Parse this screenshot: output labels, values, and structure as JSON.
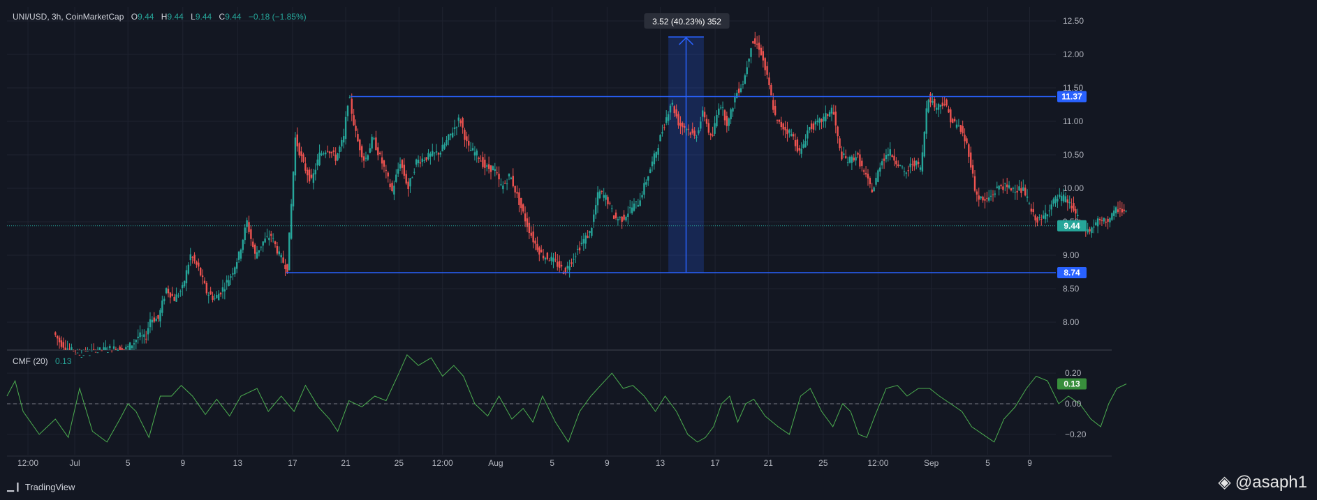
{
  "legend": {
    "symbol": "UNI/USD, 3h, CoinMarketCap",
    "open_key": "O",
    "open": "9.44",
    "high_key": "H",
    "high": "9.44",
    "low_key": "L",
    "low": "9.44",
    "close_key": "C",
    "close": "9.44",
    "change": "−0.18 (−1.85%)"
  },
  "indicator": {
    "name": "CMF (20)",
    "value": "0.13"
  },
  "footer": {
    "brand": "TradingView"
  },
  "watermark": "@asaph1",
  "measure_label": "3.52 (40.23%) 352",
  "colors": {
    "background": "#131722",
    "up": "#26a69a",
    "down": "#ef5350",
    "line": "#2962ff",
    "cmf": "#4caf50",
    "grid": "#1f2330",
    "text": "#b2b5be"
  },
  "chart_data": [
    {
      "type": "candlestick",
      "title": "UNI/USD, 3h, CoinMarketCap",
      "ylim": [
        7.6,
        12.6
      ],
      "y_ticks": [
        "12.50",
        "12.00",
        "11.50",
        "11.00",
        "10.50",
        "10.00",
        "9.50",
        "9.00",
        "8.50",
        "8.00"
      ],
      "x_ticks": [
        "12:00",
        "Jul",
        "5",
        "9",
        "13",
        "17",
        "21",
        "25",
        "12:00",
        "Aug",
        "5",
        "9",
        "13",
        "17",
        "21",
        "25",
        "12:00",
        "Sep",
        "5",
        "9"
      ],
      "price_path": [
        {
          "x": 3.0,
          "y": 7.85
        },
        {
          "x": 3.4,
          "y": 7.7
        },
        {
          "x": 4.5,
          "y": 7.5
        },
        {
          "x": 5.5,
          "y": 7.55
        },
        {
          "x": 6.5,
          "y": 7.6
        },
        {
          "x": 7.5,
          "y": 7.6
        },
        {
          "x": 8.0,
          "y": 7.7
        },
        {
          "x": 8.3,
          "y": 7.8
        },
        {
          "x": 8.7,
          "y": 7.75
        },
        {
          "x": 9.0,
          "y": 8.05
        },
        {
          "x": 9.5,
          "y": 8.05
        },
        {
          "x": 10.0,
          "y": 8.5
        },
        {
          "x": 10.5,
          "y": 8.35
        },
        {
          "x": 11.0,
          "y": 8.5
        },
        {
          "x": 11.5,
          "y": 9.0
        },
        {
          "x": 12.0,
          "y": 8.8
        },
        {
          "x": 12.5,
          "y": 8.45
        },
        {
          "x": 13.0,
          "y": 8.35
        },
        {
          "x": 13.5,
          "y": 8.5
        },
        {
          "x": 14.0,
          "y": 8.7
        },
        {
          "x": 14.5,
          "y": 9.0
        },
        {
          "x": 15.0,
          "y": 9.5
        },
        {
          "x": 15.5,
          "y": 9.0
        },
        {
          "x": 16.0,
          "y": 9.2
        },
        {
          "x": 16.5,
          "y": 9.3
        },
        {
          "x": 17.0,
          "y": 9.0
        },
        {
          "x": 17.5,
          "y": 8.8
        },
        {
          "x": 17.8,
          "y": 9.95
        },
        {
          "x": 18.0,
          "y": 10.75
        },
        {
          "x": 18.5,
          "y": 10.35
        },
        {
          "x": 19.0,
          "y": 10.1
        },
        {
          "x": 19.5,
          "y": 10.5
        },
        {
          "x": 20.0,
          "y": 10.6
        },
        {
          "x": 20.5,
          "y": 10.45
        },
        {
          "x": 21.0,
          "y": 10.75
        },
        {
          "x": 21.3,
          "y": 11.4
        },
        {
          "x": 21.8,
          "y": 10.75
        },
        {
          "x": 22.3,
          "y": 10.4
        },
        {
          "x": 22.8,
          "y": 10.75
        },
        {
          "x": 23.5,
          "y": 10.3
        },
        {
          "x": 24.0,
          "y": 9.95
        },
        {
          "x": 24.5,
          "y": 10.4
        },
        {
          "x": 25.0,
          "y": 10.0
        },
        {
          "x": 25.5,
          "y": 10.4
        },
        {
          "x": 26.0,
          "y": 10.45
        },
        {
          "x": 26.5,
          "y": 10.5
        },
        {
          "x": 27.0,
          "y": 10.55
        },
        {
          "x": 27.5,
          "y": 10.75
        },
        {
          "x": 28.2,
          "y": 11.05
        },
        {
          "x": 28.7,
          "y": 10.6
        },
        {
          "x": 29.3,
          "y": 10.5
        },
        {
          "x": 29.8,
          "y": 10.3
        },
        {
          "x": 30.3,
          "y": 10.3
        },
        {
          "x": 30.8,
          "y": 10.0
        },
        {
          "x": 31.3,
          "y": 10.2
        },
        {
          "x": 31.8,
          "y": 9.85
        },
        {
          "x": 32.3,
          "y": 9.5
        },
        {
          "x": 32.8,
          "y": 9.2
        },
        {
          "x": 33.3,
          "y": 9.0
        },
        {
          "x": 33.8,
          "y": 8.95
        },
        {
          "x": 34.3,
          "y": 8.85
        },
        {
          "x": 34.7,
          "y": 8.75
        },
        {
          "x": 35.3,
          "y": 9.0
        },
        {
          "x": 35.8,
          "y": 9.2
        },
        {
          "x": 36.3,
          "y": 9.35
        },
        {
          "x": 36.8,
          "y": 9.95
        },
        {
          "x": 37.3,
          "y": 9.85
        },
        {
          "x": 37.8,
          "y": 9.55
        },
        {
          "x": 38.3,
          "y": 9.55
        },
        {
          "x": 38.8,
          "y": 9.7
        },
        {
          "x": 39.3,
          "y": 9.8
        },
        {
          "x": 39.8,
          "y": 10.15
        },
        {
          "x": 40.3,
          "y": 10.5
        },
        {
          "x": 40.8,
          "y": 10.9
        },
        {
          "x": 41.3,
          "y": 11.3
        },
        {
          "x": 41.8,
          "y": 10.95
        },
        {
          "x": 42.3,
          "y": 10.9
        },
        {
          "x": 42.8,
          "y": 10.75
        },
        {
          "x": 43.3,
          "y": 11.15
        },
        {
          "x": 43.8,
          "y": 10.7
        },
        {
          "x": 44.3,
          "y": 11.3
        },
        {
          "x": 44.8,
          "y": 10.95
        },
        {
          "x": 45.3,
          "y": 11.4
        },
        {
          "x": 45.8,
          "y": 11.6
        },
        {
          "x": 46.3,
          "y": 12.2
        },
        {
          "x": 46.8,
          "y": 12.1
        },
        {
          "x": 47.3,
          "y": 11.6
        },
        {
          "x": 47.8,
          "y": 11.0
        },
        {
          "x": 48.3,
          "y": 10.9
        },
        {
          "x": 48.8,
          "y": 10.8
        },
        {
          "x": 49.3,
          "y": 10.5
        },
        {
          "x": 49.8,
          "y": 10.9
        },
        {
          "x": 50.3,
          "y": 10.95
        },
        {
          "x": 50.8,
          "y": 11.05
        },
        {
          "x": 51.3,
          "y": 11.2
        },
        {
          "x": 51.8,
          "y": 10.5
        },
        {
          "x": 52.3,
          "y": 10.4
        },
        {
          "x": 52.8,
          "y": 10.5
        },
        {
          "x": 53.3,
          "y": 10.2
        },
        {
          "x": 53.8,
          "y": 9.95
        },
        {
          "x": 54.3,
          "y": 10.4
        },
        {
          "x": 54.8,
          "y": 10.55
        },
        {
          "x": 55.3,
          "y": 10.4
        },
        {
          "x": 55.8,
          "y": 10.2
        },
        {
          "x": 56.3,
          "y": 10.4
        },
        {
          "x": 56.8,
          "y": 10.3
        },
        {
          "x": 57.2,
          "y": 11.4
        },
        {
          "x": 57.7,
          "y": 11.2
        },
        {
          "x": 58.2,
          "y": 11.3
        },
        {
          "x": 58.7,
          "y": 11.0
        },
        {
          "x": 59.2,
          "y": 10.9
        },
        {
          "x": 59.7,
          "y": 10.6
        },
        {
          "x": 60.2,
          "y": 9.9
        },
        {
          "x": 60.7,
          "y": 9.8
        },
        {
          "x": 61.2,
          "y": 9.9
        },
        {
          "x": 61.7,
          "y": 10.05
        },
        {
          "x": 62.2,
          "y": 10.0
        },
        {
          "x": 62.7,
          "y": 10.0
        },
        {
          "x": 63.2,
          "y": 9.95
        },
        {
          "x": 63.7,
          "y": 9.6
        },
        {
          "x": 64.2,
          "y": 9.5
        },
        {
          "x": 64.7,
          "y": 9.7
        },
        {
          "x": 65.2,
          "y": 9.85
        },
        {
          "x": 65.7,
          "y": 9.85
        },
        {
          "x": 66.2,
          "y": 9.7
        },
        {
          "x": 66.7,
          "y": 9.45
        },
        {
          "x": 67.2,
          "y": 9.35
        },
        {
          "x": 67.7,
          "y": 9.5
        },
        {
          "x": 68.2,
          "y": 9.5
        },
        {
          "x": 68.7,
          "y": 9.6
        },
        {
          "x": 69.0,
          "y": 9.7
        },
        {
          "x": 69.4,
          "y": 9.65
        }
      ],
      "lines": [
        {
          "label": "11.37",
          "y": 11.37,
          "x0": 21.3,
          "x1": 69.2
        },
        {
          "label": "8.74",
          "y": 8.74,
          "x0": 17.3,
          "x1": 69.2
        }
      ],
      "current_price": "9.44",
      "measure": {
        "x0": 41.0,
        "x1": 43.2,
        "y0": 8.74,
        "y1": 12.26
      }
    },
    {
      "type": "line",
      "title": "CMF (20)",
      "ylim": [
        -0.3,
        0.35
      ],
      "y_ticks": [
        "0.20",
        "0.00",
        "−0.20"
      ],
      "current_value": "0.13",
      "series": [
        {
          "name": "CMF (20)",
          "points": [
            {
              "x": 0.0,
              "y": 0.05
            },
            {
              "x": 0.5,
              "y": 0.15
            },
            {
              "x": 1.0,
              "y": -0.05
            },
            {
              "x": 2.0,
              "y": -0.2
            },
            {
              "x": 3.0,
              "y": -0.1
            },
            {
              "x": 3.8,
              "y": -0.22
            },
            {
              "x": 4.5,
              "y": 0.1
            },
            {
              "x": 5.3,
              "y": -0.18
            },
            {
              "x": 6.2,
              "y": -0.25
            },
            {
              "x": 7.0,
              "y": -0.1
            },
            {
              "x": 7.5,
              "y": 0.0
            },
            {
              "x": 8.0,
              "y": -0.05
            },
            {
              "x": 8.8,
              "y": -0.22
            },
            {
              "x": 9.5,
              "y": 0.05
            },
            {
              "x": 10.2,
              "y": 0.05
            },
            {
              "x": 10.8,
              "y": 0.12
            },
            {
              "x": 11.5,
              "y": 0.05
            },
            {
              "x": 12.3,
              "y": -0.07
            },
            {
              "x": 13.0,
              "y": 0.03
            },
            {
              "x": 13.8,
              "y": -0.08
            },
            {
              "x": 14.5,
              "y": 0.05
            },
            {
              "x": 15.5,
              "y": 0.1
            },
            {
              "x": 16.2,
              "y": -0.05
            },
            {
              "x": 17.0,
              "y": 0.05
            },
            {
              "x": 17.8,
              "y": -0.05
            },
            {
              "x": 18.5,
              "y": 0.12
            },
            {
              "x": 19.3,
              "y": -0.02
            },
            {
              "x": 20.0,
              "y": -0.1
            },
            {
              "x": 20.5,
              "y": -0.18
            },
            {
              "x": 21.2,
              "y": 0.02
            },
            {
              "x": 22.0,
              "y": -0.02
            },
            {
              "x": 22.8,
              "y": 0.05
            },
            {
              "x": 23.5,
              "y": 0.02
            },
            {
              "x": 24.3,
              "y": 0.2
            },
            {
              "x": 24.8,
              "y": 0.32
            },
            {
              "x": 25.5,
              "y": 0.25
            },
            {
              "x": 26.3,
              "y": 0.3
            },
            {
              "x": 27.0,
              "y": 0.18
            },
            {
              "x": 27.7,
              "y": 0.25
            },
            {
              "x": 28.3,
              "y": 0.18
            },
            {
              "x": 29.0,
              "y": 0.0
            },
            {
              "x": 29.8,
              "y": -0.08
            },
            {
              "x": 30.5,
              "y": 0.05
            },
            {
              "x": 31.3,
              "y": -0.1
            },
            {
              "x": 32.0,
              "y": -0.03
            },
            {
              "x": 32.6,
              "y": -0.12
            },
            {
              "x": 33.2,
              "y": 0.05
            },
            {
              "x": 34.0,
              "y": -0.12
            },
            {
              "x": 34.8,
              "y": -0.25
            },
            {
              "x": 35.5,
              "y": -0.05
            },
            {
              "x": 36.2,
              "y": 0.05
            },
            {
              "x": 36.8,
              "y": 0.12
            },
            {
              "x": 37.5,
              "y": 0.2
            },
            {
              "x": 38.2,
              "y": 0.1
            },
            {
              "x": 38.8,
              "y": 0.12
            },
            {
              "x": 39.5,
              "y": 0.05
            },
            {
              "x": 40.2,
              "y": -0.05
            },
            {
              "x": 40.8,
              "y": 0.05
            },
            {
              "x": 41.5,
              "y": -0.05
            },
            {
              "x": 42.2,
              "y": -0.2
            },
            {
              "x": 42.8,
              "y": -0.25
            },
            {
              "x": 43.3,
              "y": -0.22
            },
            {
              "x": 43.8,
              "y": -0.15
            },
            {
              "x": 44.3,
              "y": 0.0
            },
            {
              "x": 44.8,
              "y": 0.05
            },
            {
              "x": 45.3,
              "y": -0.12
            },
            {
              "x": 45.8,
              "y": 0.0
            },
            {
              "x": 46.3,
              "y": 0.03
            },
            {
              "x": 47.0,
              "y": -0.08
            },
            {
              "x": 47.8,
              "y": -0.15
            },
            {
              "x": 48.5,
              "y": -0.2
            },
            {
              "x": 49.2,
              "y": 0.05
            },
            {
              "x": 49.8,
              "y": 0.1
            },
            {
              "x": 50.5,
              "y": -0.05
            },
            {
              "x": 51.2,
              "y": -0.15
            },
            {
              "x": 51.8,
              "y": 0.0
            },
            {
              "x": 52.3,
              "y": -0.05
            },
            {
              "x": 52.8,
              "y": -0.2
            },
            {
              "x": 53.3,
              "y": -0.22
            },
            {
              "x": 53.8,
              "y": -0.08
            },
            {
              "x": 54.5,
              "y": 0.1
            },
            {
              "x": 55.2,
              "y": 0.12
            },
            {
              "x": 55.8,
              "y": 0.05
            },
            {
              "x": 56.5,
              "y": 0.1
            },
            {
              "x": 57.2,
              "y": 0.1
            },
            {
              "x": 57.8,
              "y": 0.05
            },
            {
              "x": 58.5,
              "y": 0.0
            },
            {
              "x": 59.2,
              "y": -0.05
            },
            {
              "x": 59.8,
              "y": -0.15
            },
            {
              "x": 60.5,
              "y": -0.2
            },
            {
              "x": 61.2,
              "y": -0.25
            },
            {
              "x": 61.8,
              "y": -0.1
            },
            {
              "x": 62.5,
              "y": -0.02
            },
            {
              "x": 63.2,
              "y": 0.1
            },
            {
              "x": 63.8,
              "y": 0.18
            },
            {
              "x": 64.5,
              "y": 0.15
            },
            {
              "x": 65.2,
              "y": 0.0
            },
            {
              "x": 65.8,
              "y": 0.05
            },
            {
              "x": 66.5,
              "y": 0.0
            },
            {
              "x": 67.2,
              "y": -0.1
            },
            {
              "x": 67.8,
              "y": -0.15
            },
            {
              "x": 68.3,
              "y": 0.0
            },
            {
              "x": 68.8,
              "y": 0.1
            },
            {
              "x": 69.4,
              "y": 0.13
            }
          ]
        }
      ]
    }
  ]
}
